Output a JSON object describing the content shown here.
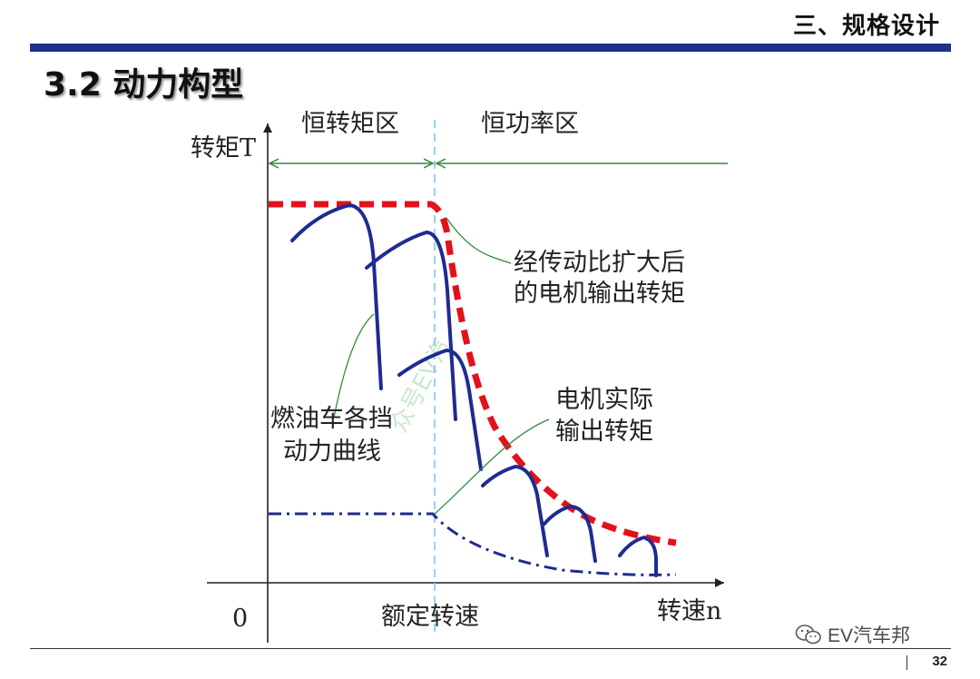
{
  "header": {
    "section_title": "三、规格设计",
    "page_heading": "3.2 动力构型",
    "bg_color": "#ffffff",
    "rule_color": "#1e2f8c"
  },
  "diagram": {
    "y_axis_label": "转矩T",
    "x_axis_label": "转速n",
    "origin_label": "0",
    "rated_speed_label": "额定转速",
    "zone_constant_torque": "恒转矩区",
    "zone_constant_power": "恒功率区",
    "callout_expanded_torque": [
      "经传动比扩大后",
      "的电机输出转矩"
    ],
    "callout_gear_curves": [
      "燃油车各挡",
      "动力曲线"
    ],
    "callout_motor_actual": [
      "电机实际",
      "输出转矩"
    ],
    "watermark_stamp": "众号EV汽",
    "colors": {
      "envelope": "#e3111b",
      "gear_curves": "#1f2b91",
      "motor_torque": "#1f2b91",
      "zone_arrows": "#2e8b3a",
      "rated_speed_line": "#7fc6ea",
      "axes": "#222222"
    }
  },
  "footer": {
    "brand_icon": "wechat-icon",
    "brand_name": "EV汽车邦",
    "page_number": "32"
  }
}
